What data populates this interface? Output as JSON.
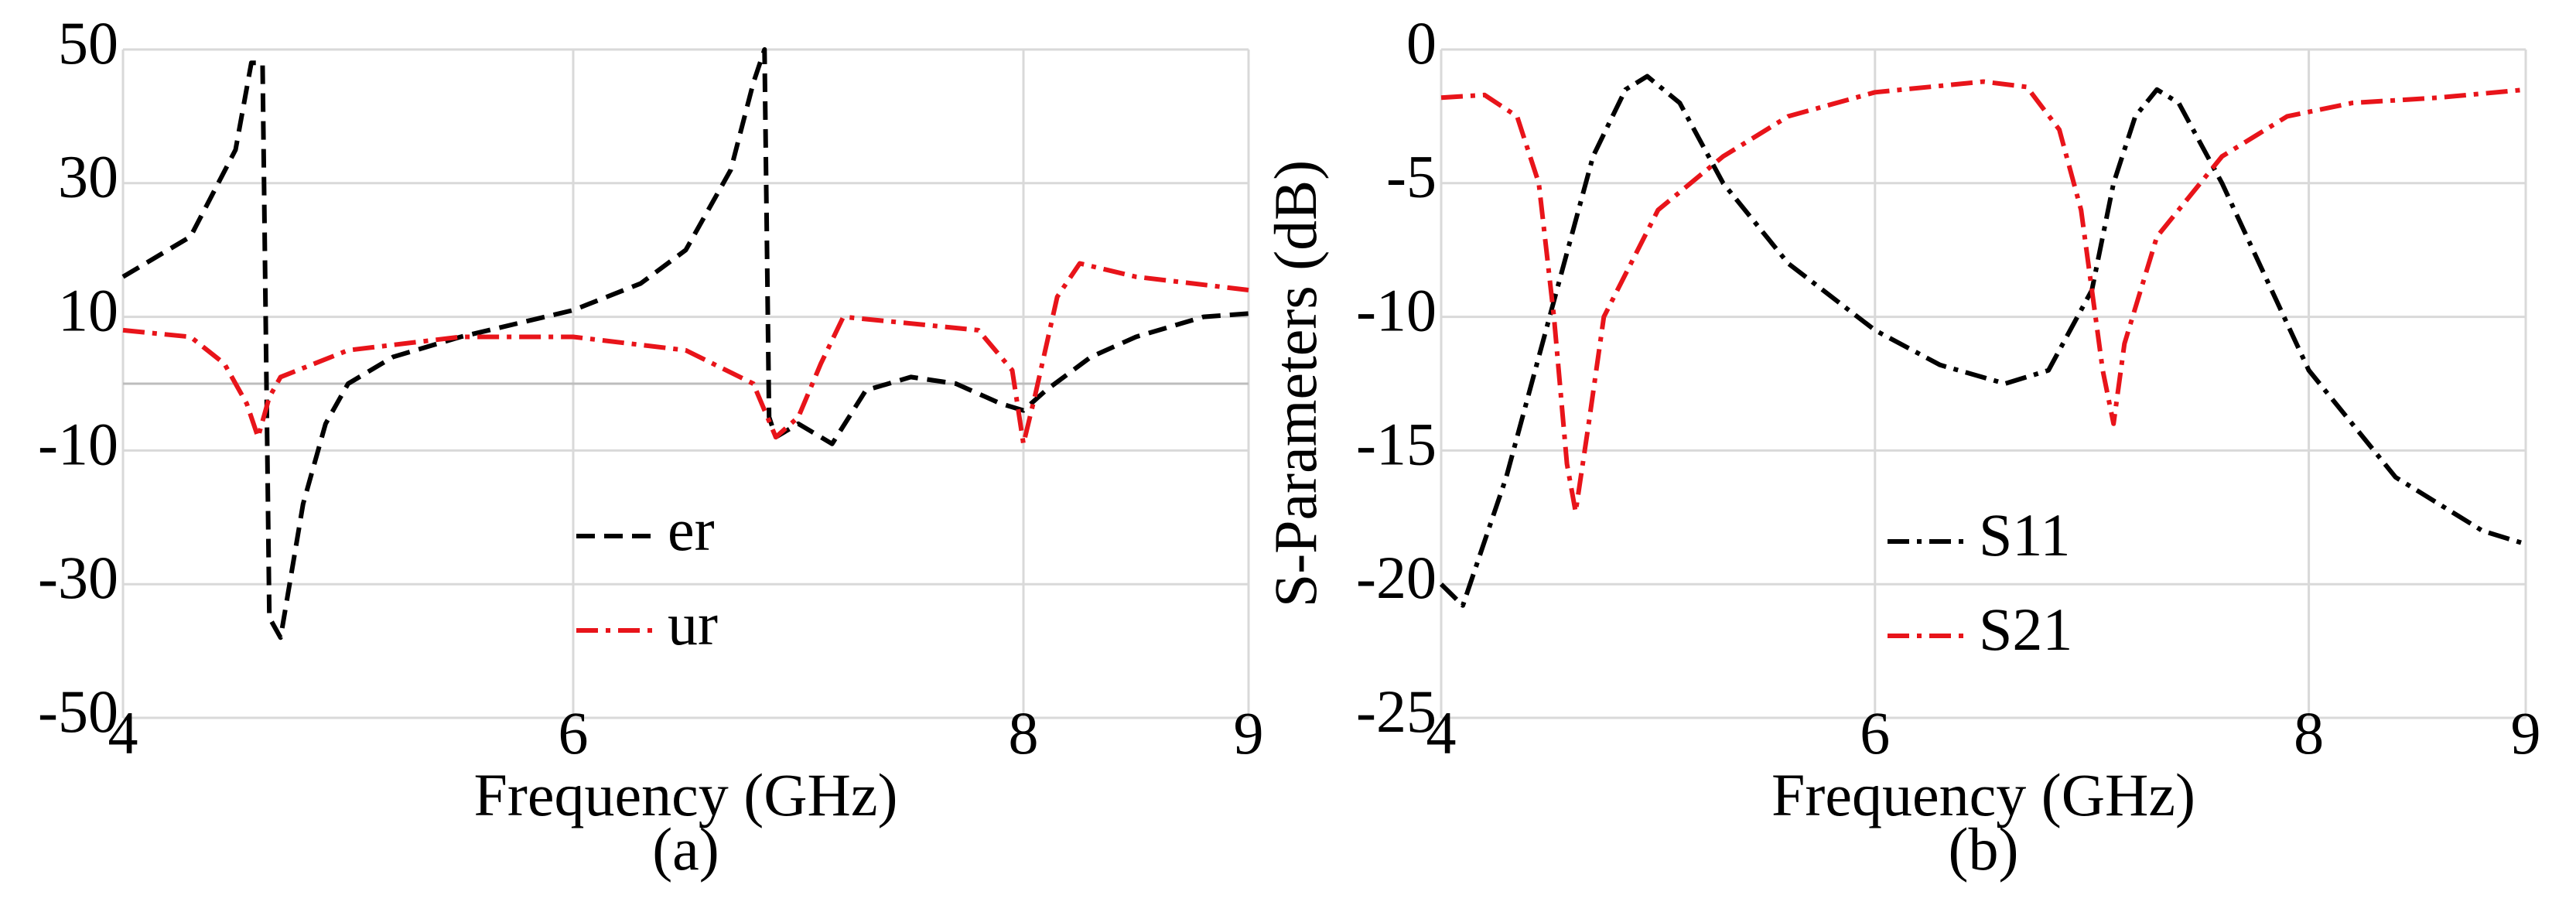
{
  "chart_data": [
    {
      "type": "line",
      "caption": "(a)",
      "x_label": "Frequency (GHz)",
      "xlim": [
        4,
        9
      ],
      "xticks": [
        4,
        6,
        8,
        9
      ],
      "ylim": [
        -50,
        50
      ],
      "yticks": [
        -50,
        -30,
        -10,
        10,
        30,
        50
      ],
      "grid": true,
      "reference_line": 0,
      "legend": "lower center",
      "series": [
        {
          "name": "er",
          "color": "#000000",
          "dash": "dashed",
          "x": [
            4,
            4.3,
            4.5,
            4.57,
            4.62,
            4.65,
            4.7,
            4.8,
            4.9,
            5.0,
            5.2,
            5.5,
            6,
            6.3,
            6.5,
            6.7,
            6.8,
            6.85,
            6.87,
            6.9,
            7.0,
            7.1,
            7.15,
            7.3,
            7.5,
            7.7,
            7.9,
            8.0,
            8.1,
            8.3,
            8.5,
            8.8,
            9
          ],
          "values": [
            16,
            22,
            35,
            48,
            48,
            -35,
            -38,
            -18,
            -6,
            0,
            4,
            7,
            11,
            15,
            20,
            32,
            45,
            50,
            -5,
            -8,
            -6,
            -8,
            -9,
            -1,
            1,
            0,
            -3,
            -4,
            -1,
            4,
            7,
            10,
            10.5
          ]
        },
        {
          "name": "ur",
          "color": "#e8141a",
          "dash": "dashdot",
          "x": [
            4,
            4.3,
            4.45,
            4.55,
            4.6,
            4.65,
            4.7,
            5,
            5.5,
            6,
            6.5,
            6.8,
            6.9,
            7.0,
            7.1,
            7.2,
            7.5,
            7.8,
            7.95,
            8.0,
            8.05,
            8.15,
            8.25,
            8.5,
            9
          ],
          "values": [
            8,
            7,
            3,
            -3,
            -8,
            -2,
            1,
            5,
            7,
            7,
            5,
            0,
            -8,
            -5,
            3,
            10,
            9,
            8,
            2,
            -9,
            -2,
            13,
            18,
            16,
            14
          ]
        }
      ]
    },
    {
      "type": "line",
      "caption": "(b)",
      "x_label": "Frequency (GHz)",
      "y_label": "S-Parameters (dB)",
      "xlim": [
        4,
        9
      ],
      "xticks": [
        4,
        6,
        8,
        9
      ],
      "ylim": [
        -25,
        0
      ],
      "yticks": [
        -25,
        -20,
        -15,
        -10,
        -5,
        0
      ],
      "grid": true,
      "legend": "lower center",
      "series": [
        {
          "name": "S11",
          "color": "#000000",
          "dash": "dashdot",
          "x": [
            4,
            4.1,
            4.3,
            4.5,
            4.7,
            4.85,
            4.95,
            5.1,
            5.3,
            5.6,
            6,
            6.3,
            6.6,
            6.8,
            7.0,
            7.1,
            7.2,
            7.3,
            7.4,
            7.6,
            8,
            8.4,
            8.8,
            9
          ],
          "values": [
            -20,
            -20.8,
            -16,
            -10,
            -4,
            -1.5,
            -1,
            -2,
            -5,
            -8,
            -10.5,
            -11.8,
            -12.5,
            -12,
            -9,
            -5,
            -2.5,
            -1.5,
            -2,
            -5,
            -12,
            -16,
            -18,
            -18.5
          ]
        },
        {
          "name": "S21",
          "color": "#e8141a",
          "dash": "dashdot",
          "x": [
            4,
            4.2,
            4.35,
            4.45,
            4.52,
            4.58,
            4.62,
            4.68,
            4.75,
            5,
            5.3,
            5.6,
            6,
            6.5,
            6.7,
            6.85,
            6.95,
            7.05,
            7.1,
            7.15,
            7.3,
            7.6,
            7.9,
            8.2,
            8.6,
            9
          ],
          "values": [
            -1.8,
            -1.7,
            -2.5,
            -5,
            -10,
            -15.5,
            -17.3,
            -14,
            -10,
            -6,
            -4,
            -2.5,
            -1.6,
            -1.2,
            -1.4,
            -3,
            -6,
            -12,
            -14,
            -11,
            -7,
            -4,
            -2.5,
            -2,
            -1.8,
            -1.5
          ]
        }
      ]
    }
  ]
}
